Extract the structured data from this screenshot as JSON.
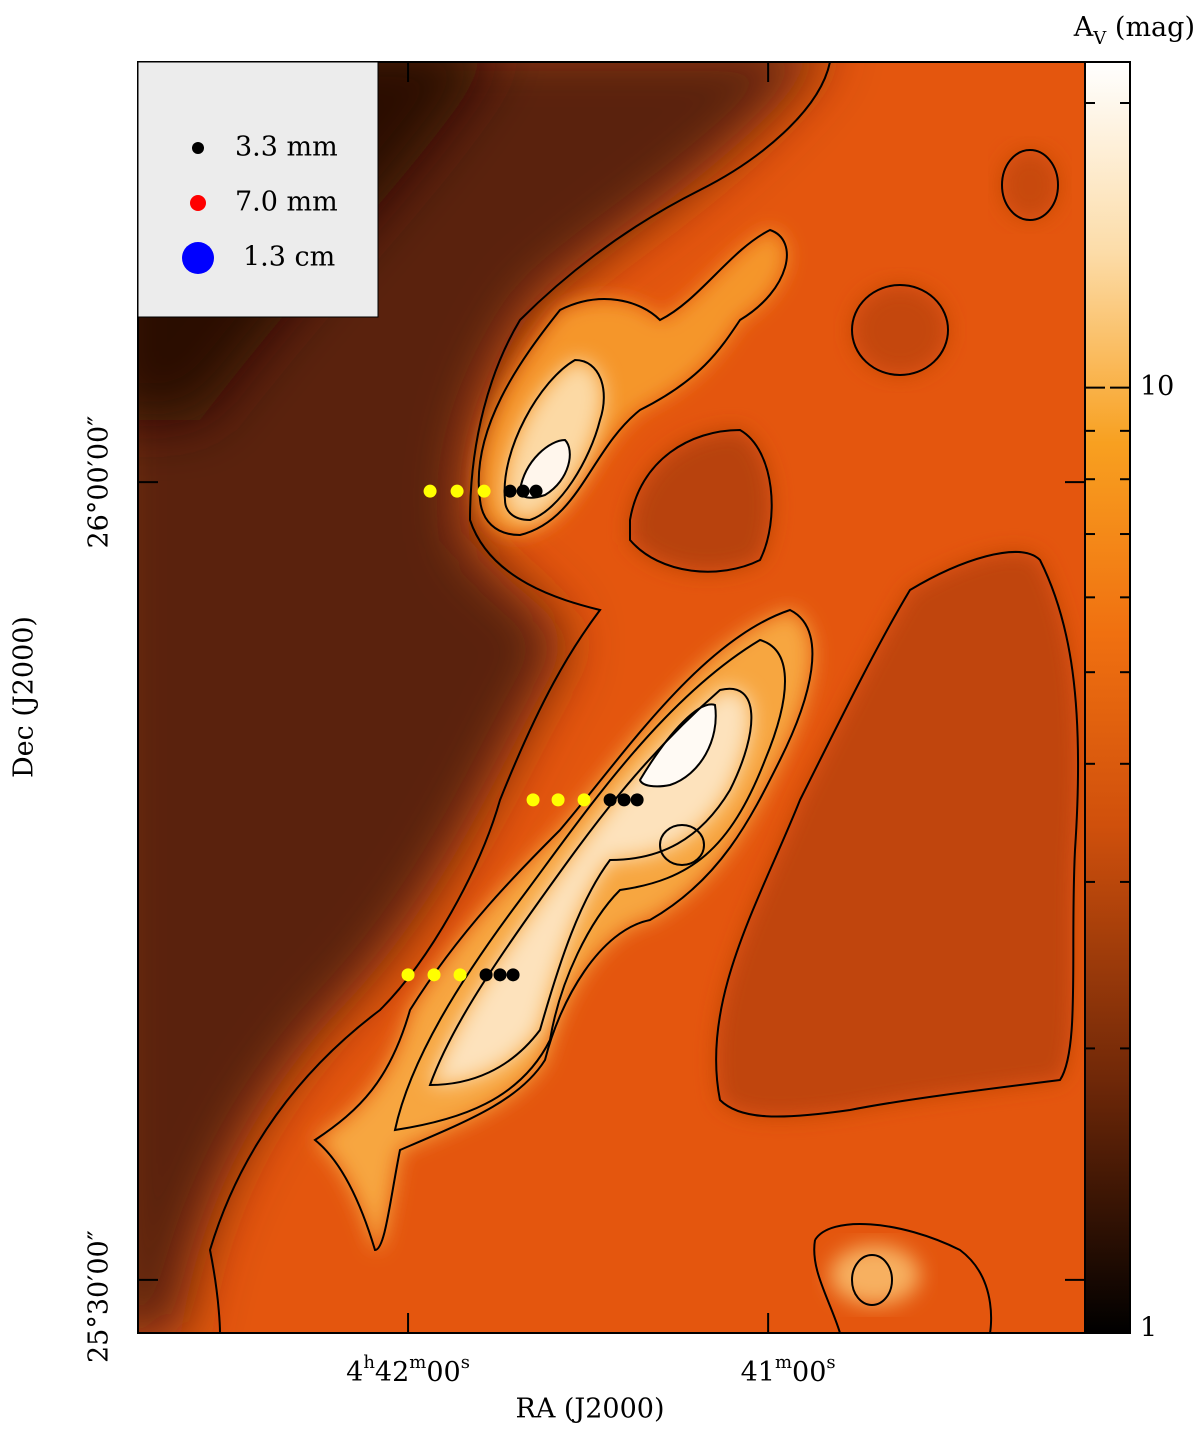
{
  "chart_data": {
    "type": "image-map",
    "x_label": "RA (J2000)",
    "y_label": "Dec (J2000)",
    "colorbar_label": "AV (mag)",
    "xlim": [
      16965,
      16807.2
    ],
    "ylim": [
      1528.0,
      1575.8
    ],
    "xticks": [
      {
        "value": 16920,
        "label": "4h42m00s"
      },
      {
        "value": 16860,
        "label": "41m00s"
      }
    ],
    "yticks": [
      {
        "value": 1560,
        "label": "26°00′00″"
      },
      {
        "value": 1530,
        "label": "25°30′00″"
      }
    ],
    "clim": [
      1,
      22.1
    ],
    "clog": true,
    "cticks": [
      1,
      10
    ],
    "cminor_ticks": [
      2,
      3,
      4,
      5,
      6,
      7,
      8,
      9,
      20
    ],
    "series": [
      {
        "color": "#ffff00",
        "x": [
          16916.33,
          16911.83,
          16907.33,
          16899.17,
          16895,
          16890.67,
          16920,
          16915.67,
          16911.33
        ],
        "y": [
          1559.66,
          1559.66,
          1559.66,
          1548.05,
          1548.05,
          1548.05,
          1541.47,
          1541.47,
          1541.47
        ]
      },
      {
        "name": "3.3 mm",
        "color": "#000000",
        "x": [
          16903,
          16900.83,
          16898.67,
          16886.33,
          16884,
          16881.83,
          16907,
          16904.67,
          16902.5
        ],
        "y": [
          1559.66,
          1559.66,
          1559.66,
          1548.05,
          1548.05,
          1548.05,
          1541.47,
          1541.47,
          1541.47
        ]
      },
      {
        "name": "7.0 mm",
        "color": "#ff0000",
        "x": [],
        "y": []
      },
      {
        "name": "1.3 cm",
        "color": "#0000ff",
        "x": [],
        "y": []
      }
    ]
  }
}
